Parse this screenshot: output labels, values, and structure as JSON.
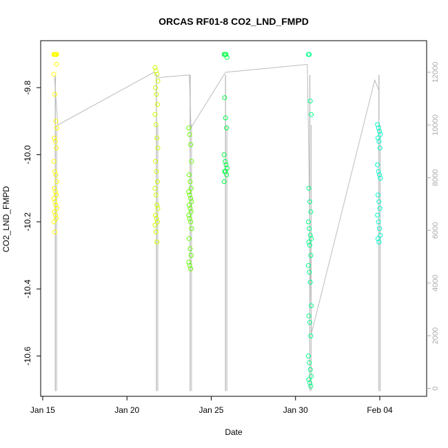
{
  "chart_data": {
    "type": "scatter",
    "title": "ORCAS RF01-8 CO2_LND_FMPD",
    "xlabel": "Date",
    "ylabel": "CO2_LND_FMPD",
    "x_ticks": [
      "Jan 15",
      "Jan 20",
      "Jan 25",
      "Jan 30",
      "Feb 04"
    ],
    "x_tick_days": [
      15,
      20,
      25,
      30,
      35
    ],
    "xlim_days": [
      14.88,
      37.78
    ],
    "ylim": [
      -10.72,
      -9.66
    ],
    "y_ticks": [
      -10.6,
      -10.4,
      -10.2,
      -10.0,
      -9.8
    ],
    "y2_ticks": [
      0,
      2000,
      4000,
      6000,
      8000,
      10000,
      12000
    ],
    "y2lim": [
      -300,
      13200
    ],
    "grid": false,
    "series": [
      {
        "color": "#ffff00",
        "flight": "RF01",
        "x_day": 15.75,
        "values": [
          -9.6,
          -9.61,
          -9.63,
          -9.65,
          -9.68,
          -9.7,
          -9.73,
          -9.76,
          -9.82,
          -9.9,
          -9.92,
          -9.95,
          -9.96,
          -9.98,
          -10.02,
          -10.05,
          -10.06,
          -10.08,
          -10.1,
          -10.11,
          -10.12,
          -10.13,
          -10.14,
          -10.15,
          -10.16,
          -10.17,
          -10.18,
          -10.19,
          -10.2,
          -10.23
        ]
      },
      {
        "color": "#ccff00",
        "flight": "RF02",
        "x_day": 21.75,
        "values": [
          -9.74,
          -9.75,
          -9.76,
          -9.78,
          -9.8,
          -9.82,
          -9.85,
          -9.88,
          -9.91,
          -9.95,
          -9.98,
          -10.02,
          -10.05,
          -10.08,
          -10.1,
          -10.12,
          -10.15,
          -10.16,
          -10.18,
          -10.19,
          -10.2,
          -10.21,
          -10.23,
          -10.26
        ]
      },
      {
        "color": "#66ff00",
        "flight": "RF03",
        "x_day": 23.75,
        "values": [
          -9.92,
          -9.94,
          -9.97,
          -10.02,
          -10.06,
          -10.08,
          -10.1,
          -10.11,
          -10.12,
          -10.13,
          -10.14,
          -10.15,
          -10.16,
          -10.17,
          -10.18,
          -10.19,
          -10.2,
          -10.22,
          -10.25,
          -10.28,
          -10.3,
          -10.32,
          -10.33,
          -10.34
        ]
      },
      {
        "color": "#00ff44",
        "flight": "RF04",
        "x_day": 25.85,
        "values": [
          -9.61,
          -9.61,
          -9.69,
          -9.71,
          -9.83,
          -9.89,
          -9.92,
          -10.0,
          -10.02,
          -10.03,
          -10.04,
          -10.05,
          -10.05,
          -10.06,
          -10.08
        ]
      },
      {
        "color": "#00ff88",
        "flight": "RF05",
        "x_day": 30.85,
        "values": [
          -9.63,
          -9.64,
          -9.84,
          -9.88,
          -10.1,
          -10.14,
          -10.17,
          -10.2,
          -10.22,
          -10.24,
          -10.25,
          -10.26,
          -10.27,
          -10.3,
          -10.33,
          -10.35,
          -10.38,
          -10.45,
          -10.48,
          -10.5,
          -10.54,
          -10.6,
          -10.62,
          -10.64,
          -10.66,
          -10.67,
          -10.68,
          -10.69
        ]
      },
      {
        "color": "#00ffcc",
        "flight": "RF06",
        "x_day": 34.95,
        "values": [
          -9.91,
          -9.92,
          -9.93,
          -9.94,
          -9.95,
          -9.96,
          -9.98,
          -10.03,
          -10.05,
          -10.06,
          -10.07,
          -10.12,
          -10.14,
          -10.16,
          -10.18,
          -10.2,
          -10.22,
          -10.24,
          -10.25,
          -10.26
        ]
      }
    ],
    "altitude_trace": {
      "color": "#bbbbbb",
      "note_axis": "right",
      "points": [
        [
          15.7,
          11800
        ],
        [
          15.9,
          10000
        ],
        [
          21.6,
          12000
        ],
        [
          21.9,
          11800
        ],
        [
          23.7,
          11900
        ],
        [
          23.8,
          9900
        ],
        [
          25.85,
          12000
        ],
        [
          30.7,
          12300
        ],
        [
          30.95,
          2100
        ],
        [
          34.7,
          11700
        ],
        [
          34.95,
          11300
        ]
      ]
    }
  }
}
